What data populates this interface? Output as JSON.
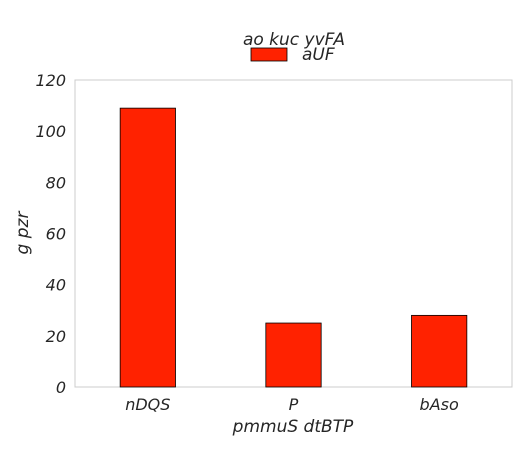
{
  "chart_data": {
    "type": "bar",
    "title": "ao kuc  yvFA",
    "xlabel": "pmmuS dtBTP",
    "ylabel": "g pzr",
    "categories": [
      "nDQS",
      "P",
      "bAso"
    ],
    "series": [
      {
        "name": "aUF",
        "values": [
          109,
          25,
          28
        ],
        "color": "#ff2200"
      }
    ],
    "ylim": [
      0,
      120
    ],
    "yticks": [
      "0",
      "20",
      "40",
      "60",
      "80",
      "100",
      "120"
    ],
    "grid": false,
    "legend": "top-center"
  }
}
